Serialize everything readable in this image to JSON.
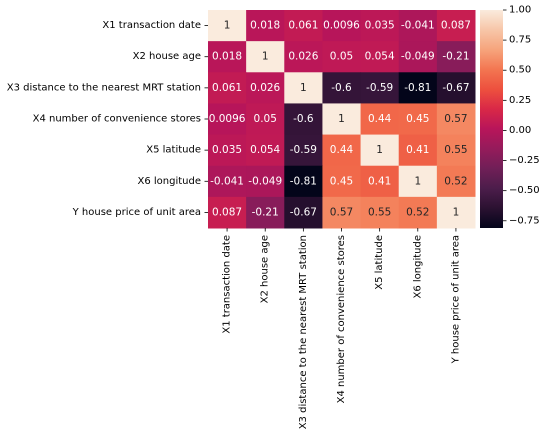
{
  "chart_data": {
    "type": "heatmap",
    "title": "",
    "row_labels": [
      "X1 transaction date",
      "X2 house age",
      "X3 distance to the nearest MRT station",
      "X4 number of convenience stores",
      "X5 latitude",
      "X6 longitude",
      "Y house price of unit area"
    ],
    "col_labels": [
      "X1 transaction date",
      "X2 house age",
      "X3 distance to the nearest MRT station",
      "X4 number of convenience stores",
      "X5 latitude",
      "X6 longitude",
      "Y house price of unit area"
    ],
    "values": [
      [
        1,
        0.018,
        0.061,
        0.0096,
        0.035,
        -0.041,
        0.087
      ],
      [
        0.018,
        1,
        0.026,
        0.05,
        0.054,
        -0.049,
        -0.21
      ],
      [
        0.061,
        0.026,
        1,
        -0.6,
        -0.59,
        -0.81,
        -0.67
      ],
      [
        0.0096,
        0.05,
        -0.6,
        1,
        0.44,
        0.45,
        0.57
      ],
      [
        0.035,
        0.054,
        -0.59,
        0.44,
        1,
        0.41,
        0.55
      ],
      [
        -0.041,
        -0.049,
        -0.81,
        0.45,
        0.41,
        1,
        0.52
      ],
      [
        0.087,
        -0.21,
        -0.67,
        0.57,
        0.55,
        0.52,
        1
      ]
    ],
    "cell_labels": [
      [
        "1",
        "0.018",
        "0.061",
        "0.0096",
        "0.035",
        "-0.041",
        "0.087"
      ],
      [
        "0.018",
        "1",
        "0.026",
        "0.05",
        "0.054",
        "-0.049",
        "-0.21"
      ],
      [
        "0.061",
        "0.026",
        "1",
        "-0.6",
        "-0.59",
        "-0.81",
        "-0.67"
      ],
      [
        "0.0096",
        "0.05",
        "-0.6",
        "1",
        "0.44",
        "0.45",
        "0.57"
      ],
      [
        "0.035",
        "0.054",
        "-0.59",
        "0.44",
        "1",
        "0.41",
        "0.55"
      ],
      [
        "-0.041",
        "-0.049",
        "-0.81",
        "0.45",
        "0.41",
        "1",
        "0.52"
      ],
      [
        "0.087",
        "-0.21",
        "-0.67",
        "0.57",
        "0.55",
        "0.52",
        "1"
      ]
    ],
    "colormap": "rocket",
    "vmin": -0.81,
    "vmax": 1,
    "colorbar_ticks": [
      1.0,
      0.75,
      0.5,
      0.25,
      0.0,
      -0.25,
      -0.5,
      -0.75
    ],
    "colorbar_tick_labels": [
      "1.00",
      "0.75",
      "0.50",
      "0.25",
      "0.00",
      "−0.25",
      "−0.50",
      "−0.75"
    ],
    "colormap_stops": [
      "#03051a",
      "#2b1131",
      "#4c1d4b",
      "#701f57",
      "#951b5b",
      "#b8155a",
      "#d92847",
      "#ed503e",
      "#f37651",
      "#f6a47c",
      "#f7c6a8",
      "#faebdd"
    ]
  }
}
